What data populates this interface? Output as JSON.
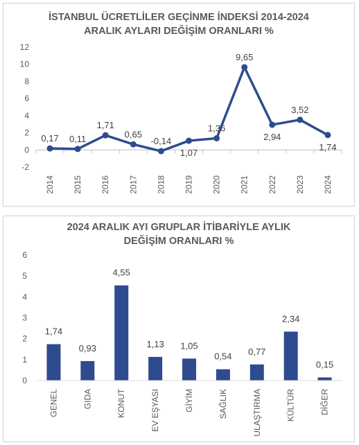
{
  "chart_data": [
    {
      "type": "line",
      "title": [
        "İSTANBUL ÜCRETLİLER GEÇİNME İNDEKSİ 2014-2024",
        "ARALIK AYLARI DEĞİŞİM ORANLARI %"
      ],
      "categories": [
        "2014",
        "2015",
        "2016",
        "2017",
        "2018",
        "2019",
        "2020",
        "2021",
        "2022",
        "2023",
        "2024"
      ],
      "values": [
        0.17,
        0.11,
        1.71,
        0.65,
        -0.14,
        1.07,
        1.36,
        9.65,
        2.94,
        3.52,
        1.74
      ],
      "value_labels": [
        "0,17",
        "0,11",
        "1,71",
        "0,65",
        "-0,14",
        "1,07",
        "1,36",
        "9,65",
        "2,94",
        "3,52",
        "1,74"
      ],
      "label_positions": [
        "above",
        "above",
        "above",
        "above",
        "above",
        "below",
        "above",
        "above",
        "below",
        "above",
        "below"
      ],
      "yticks": [
        "-2",
        "0",
        "2",
        "4",
        "6",
        "8",
        "10",
        "12"
      ],
      "ylim": [
        -2,
        12
      ],
      "grid": false,
      "color": "#2F4B8F"
    },
    {
      "type": "bar",
      "title": [
        "2024 ARALIK AYI GRUPLAR İTİBARİYLE AYLIK",
        "DEĞİŞİM ORANLARI %"
      ],
      "categories": [
        "GENEL",
        "GIDA",
        "KONUT",
        "EV EŞYASI",
        "GİYİM",
        "SAĞLIK",
        "ULAŞTIRMA",
        "KÜLTÜR",
        "DİĞER"
      ],
      "values": [
        1.74,
        0.93,
        4.55,
        1.13,
        1.05,
        0.54,
        0.77,
        2.34,
        0.15
      ],
      "value_labels": [
        "1,74",
        "0,93",
        "4,55",
        "1,13",
        "1,05",
        "0,54",
        "0,77",
        "2,34",
        "0,15"
      ],
      "yticks": [
        "0",
        "1",
        "2",
        "3",
        "4",
        "5",
        "6"
      ],
      "ylim": [
        0,
        6
      ],
      "grid": false,
      "color": "#2F4B8F"
    }
  ]
}
